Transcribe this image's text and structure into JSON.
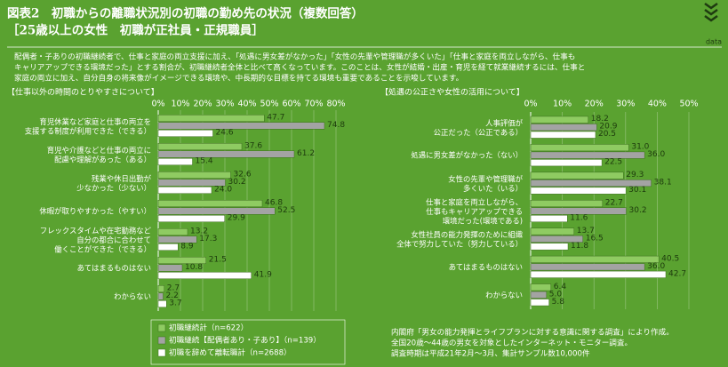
{
  "header": {
    "title": "図表2　初職からの離職状況別の初職の勤め先の状況（複数回答）",
    "subtitle": "［25歳以上の女性　初職が正社員・正規職員］",
    "tag": "data"
  },
  "description": [
    "配偶者・子ありの初職継続者で、仕事と家庭の両立支援に加え、「処遇に男女差がなかった」「女性の先輩や管理職が多くいた」「仕事と家庭を両立しながら、仕事も",
    "キャリアアップできる環境だった」とする割合が、初職継続者全体と比べて高くなっています。このことは、女性が結婚・出産・育児を経て就業継続するには、仕事と",
    "家庭の両立に加え、自分自身の将来像がイメージできる環境や、中長期的な目標を持てる環境も重要であることを示唆しています。"
  ],
  "source": [
    "内閣府「男女の能力発揮とライフプランに対する意識に関する調査」により作成。",
    "全国20歳〜44歳の男女を対象としたインターネット・モニター調査。",
    "調査時期は平成21年2月〜3月、集計サンプル数10,000件"
  ],
  "chart_data": [
    {
      "type": "hbar",
      "title": "【仕事以外の時間のとりやすさについて】",
      "categories": [
        "育児休業など家庭と仕事の両立を\n支援する制度が利用できた（できる）",
        "育児や介護などと仕事の両立に\n配慮や理解があった（ある）",
        "残業や休日出勤が\n少なかった（少ない）",
        "休暇が取りやすかった（やすい）",
        "フレックスタイムや在宅勤務など\n自分の都合に合わせて\n働くことができた（できる）",
        "あてはまるものはない",
        "わからない"
      ],
      "series": [
        {
          "name": "初職継続計（n=622）",
          "color": "#8fcb62",
          "values": [
            47.7,
            37.6,
            32.6,
            46.8,
            13.2,
            21.5,
            2.7
          ]
        },
        {
          "name": "初職継続【配偶者あり・子あり】（n=139）",
          "color": "#a3a3a3",
          "values": [
            74.8,
            61.2,
            30.2,
            52.5,
            17.3,
            10.8,
            2.2
          ]
        },
        {
          "name": "初職を辞めて離転職計（n=2688）",
          "color": "#ffffff",
          "values": [
            24.6,
            15.4,
            24.0,
            29.9,
            8.9,
            41.9,
            3.7
          ],
          "value_labels": [
            "24.6",
            "15.4",
            "24.0",
            "29.9",
            "8.9",
            "41.9",
            "3.7"
          ]
        }
      ],
      "xlim": [
        0,
        80
      ],
      "xticks": [
        {
          "value": 0,
          "label": "0%"
        },
        {
          "value": 10,
          "label": "10%"
        },
        {
          "value": 20,
          "label": "20%"
        },
        {
          "value": 30,
          "label": "30%"
        },
        {
          "value": 40,
          "label": "40%"
        },
        {
          "value": 50,
          "label": "50%"
        },
        {
          "value": 60,
          "label": "60%"
        },
        {
          "value": 70,
          "label": "70%"
        },
        {
          "value": 80,
          "label": "80%"
        }
      ],
      "grid": true
    },
    {
      "type": "hbar",
      "title": "【処遇の公正さや女性の活用について】",
      "categories": [
        "人事評価が\n公正だった（公正である）",
        "処遇に男女差がなかった（ない）",
        "女性の先輩や管理職が\n多くいた（いる）",
        "仕事と家庭を両立しながら、\n仕事もキャリアアップできる\n環境だった(環境である)",
        "女性社員の能力発揮のために組織\n全体で努力していた（努力している）",
        "あてはまるものはない",
        "わからない"
      ],
      "series": [
        {
          "color": "#8fcb62",
          "values": [
            18.2,
            31.0,
            29.3,
            22.7,
            13.7,
            40.5,
            6.4
          ],
          "value_labels": [
            "18.2",
            "31.0",
            "29.3",
            "22.7",
            "13.7",
            "40.5",
            "6.4"
          ]
        },
        {
          "color": "#a3a3a3",
          "values": [
            20.9,
            36.0,
            38.1,
            30.2,
            16.5,
            36.0,
            5.0
          ],
          "value_labels": [
            "20.9",
            "36.0",
            "38.1",
            "30.2",
            "16.5",
            "36.0",
            "5.0"
          ]
        },
        {
          "color": "#ffffff",
          "values": [
            20.5,
            22.5,
            30.1,
            11.6,
            11.8,
            42.7,
            5.8
          ]
        }
      ],
      "xlim": [
        0,
        50
      ],
      "xticks": [
        {
          "value": 0,
          "label": "0%"
        },
        {
          "value": 10,
          "label": "10%"
        },
        {
          "value": 20,
          "label": "20%"
        },
        {
          "value": 30,
          "label": "30%"
        },
        {
          "value": 40,
          "label": "40%"
        },
        {
          "value": 50,
          "label": "50%"
        }
      ],
      "grid": true
    }
  ]
}
